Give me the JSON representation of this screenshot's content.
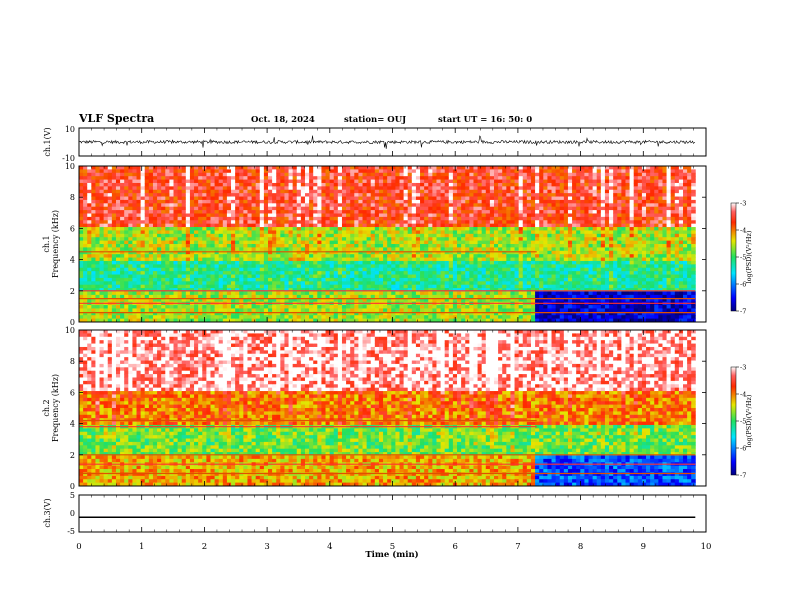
{
  "header": {
    "title": "VLF Spectra",
    "date": "Oct. 18, 2024",
    "station": "station= OUJ",
    "start": "start  UT =   16: 50: 0"
  },
  "chart_data": [
    {
      "type": "line",
      "panel": "ch1-waveform",
      "ylabel": "ch.1(V)",
      "ylim": [
        -10,
        10
      ],
      "yticks": [
        "10",
        "-10"
      ],
      "x_range_min": [
        0,
        9.83
      ],
      "series": [
        {
          "values_summary": "noisy waveform centered near 0 V (amplitude ~1-2 V with sferic spikes to about +/-5 V)"
        }
      ]
    },
    {
      "type": "heatmap",
      "panel": "ch1-spectrogram",
      "ylabel": "ch.1 Frequency (kHz)",
      "ylim": [
        0,
        10
      ],
      "yticks": [
        "10",
        "8",
        "6",
        "4",
        "2",
        "0"
      ],
      "x_range_min": [
        0,
        9.83
      ],
      "colorbar": {
        "label": "log(PSD)(V²/Hz)",
        "range": [
          -7,
          -3
        ],
        "ticks": [
          "-3",
          "-4",
          "-5",
          "-6",
          "-7"
        ]
      },
      "description_levels": {
        "above_6kHz": -3.6,
        "4_to_6kHz": -4.6,
        "2_to_4kHz": -5.2,
        "below_2kHz_before_7.3min": -4.6,
        "below_2kHz_after_7.3min": -6.7
      },
      "lines_kHz": [
        4.5,
        2.0,
        1.5,
        1.2,
        0.6
      ]
    },
    {
      "type": "heatmap",
      "panel": "ch2-spectrogram",
      "ylabel": "ch.2 Frequency (kHz)",
      "ylim": [
        0,
        10
      ],
      "yticks": [
        "10",
        "8",
        "6",
        "4",
        "2",
        "0"
      ],
      "x_range_min": [
        0,
        9.83
      ],
      "colorbar": {
        "label": "log(PSD)(V²/Hz)",
        "range": [
          -7,
          -3
        ],
        "ticks": [
          "-3",
          "-4",
          "-5",
          "-6",
          "-7"
        ]
      },
      "description_levels": {
        "above_6kHz": -3.2,
        "4_to_6kHz": -4.0,
        "2_to_4kHz": -4.8,
        "below_2kHz_before_7.3min": -4.2,
        "below_2kHz_after_7.3min": -6.2
      },
      "lines_kHz": [
        4.2,
        3.8,
        2.0,
        1.4,
        0.8
      ]
    },
    {
      "type": "line",
      "panel": "ch3-waveform",
      "ylabel": "ch.3(V)",
      "ylim": [
        -5,
        5
      ],
      "yticks": [
        "5",
        "0",
        "-5"
      ],
      "x_range_min": [
        0,
        9.83
      ],
      "series": [
        {
          "values_summary": "flat line at about -1 V"
        }
      ],
      "xlabel": "Time (min)",
      "xlim": [
        0,
        10
      ],
      "xticks": [
        "0",
        "1",
        "2",
        "3",
        "4",
        "5",
        "6",
        "7",
        "8",
        "9",
        "10"
      ]
    }
  ]
}
